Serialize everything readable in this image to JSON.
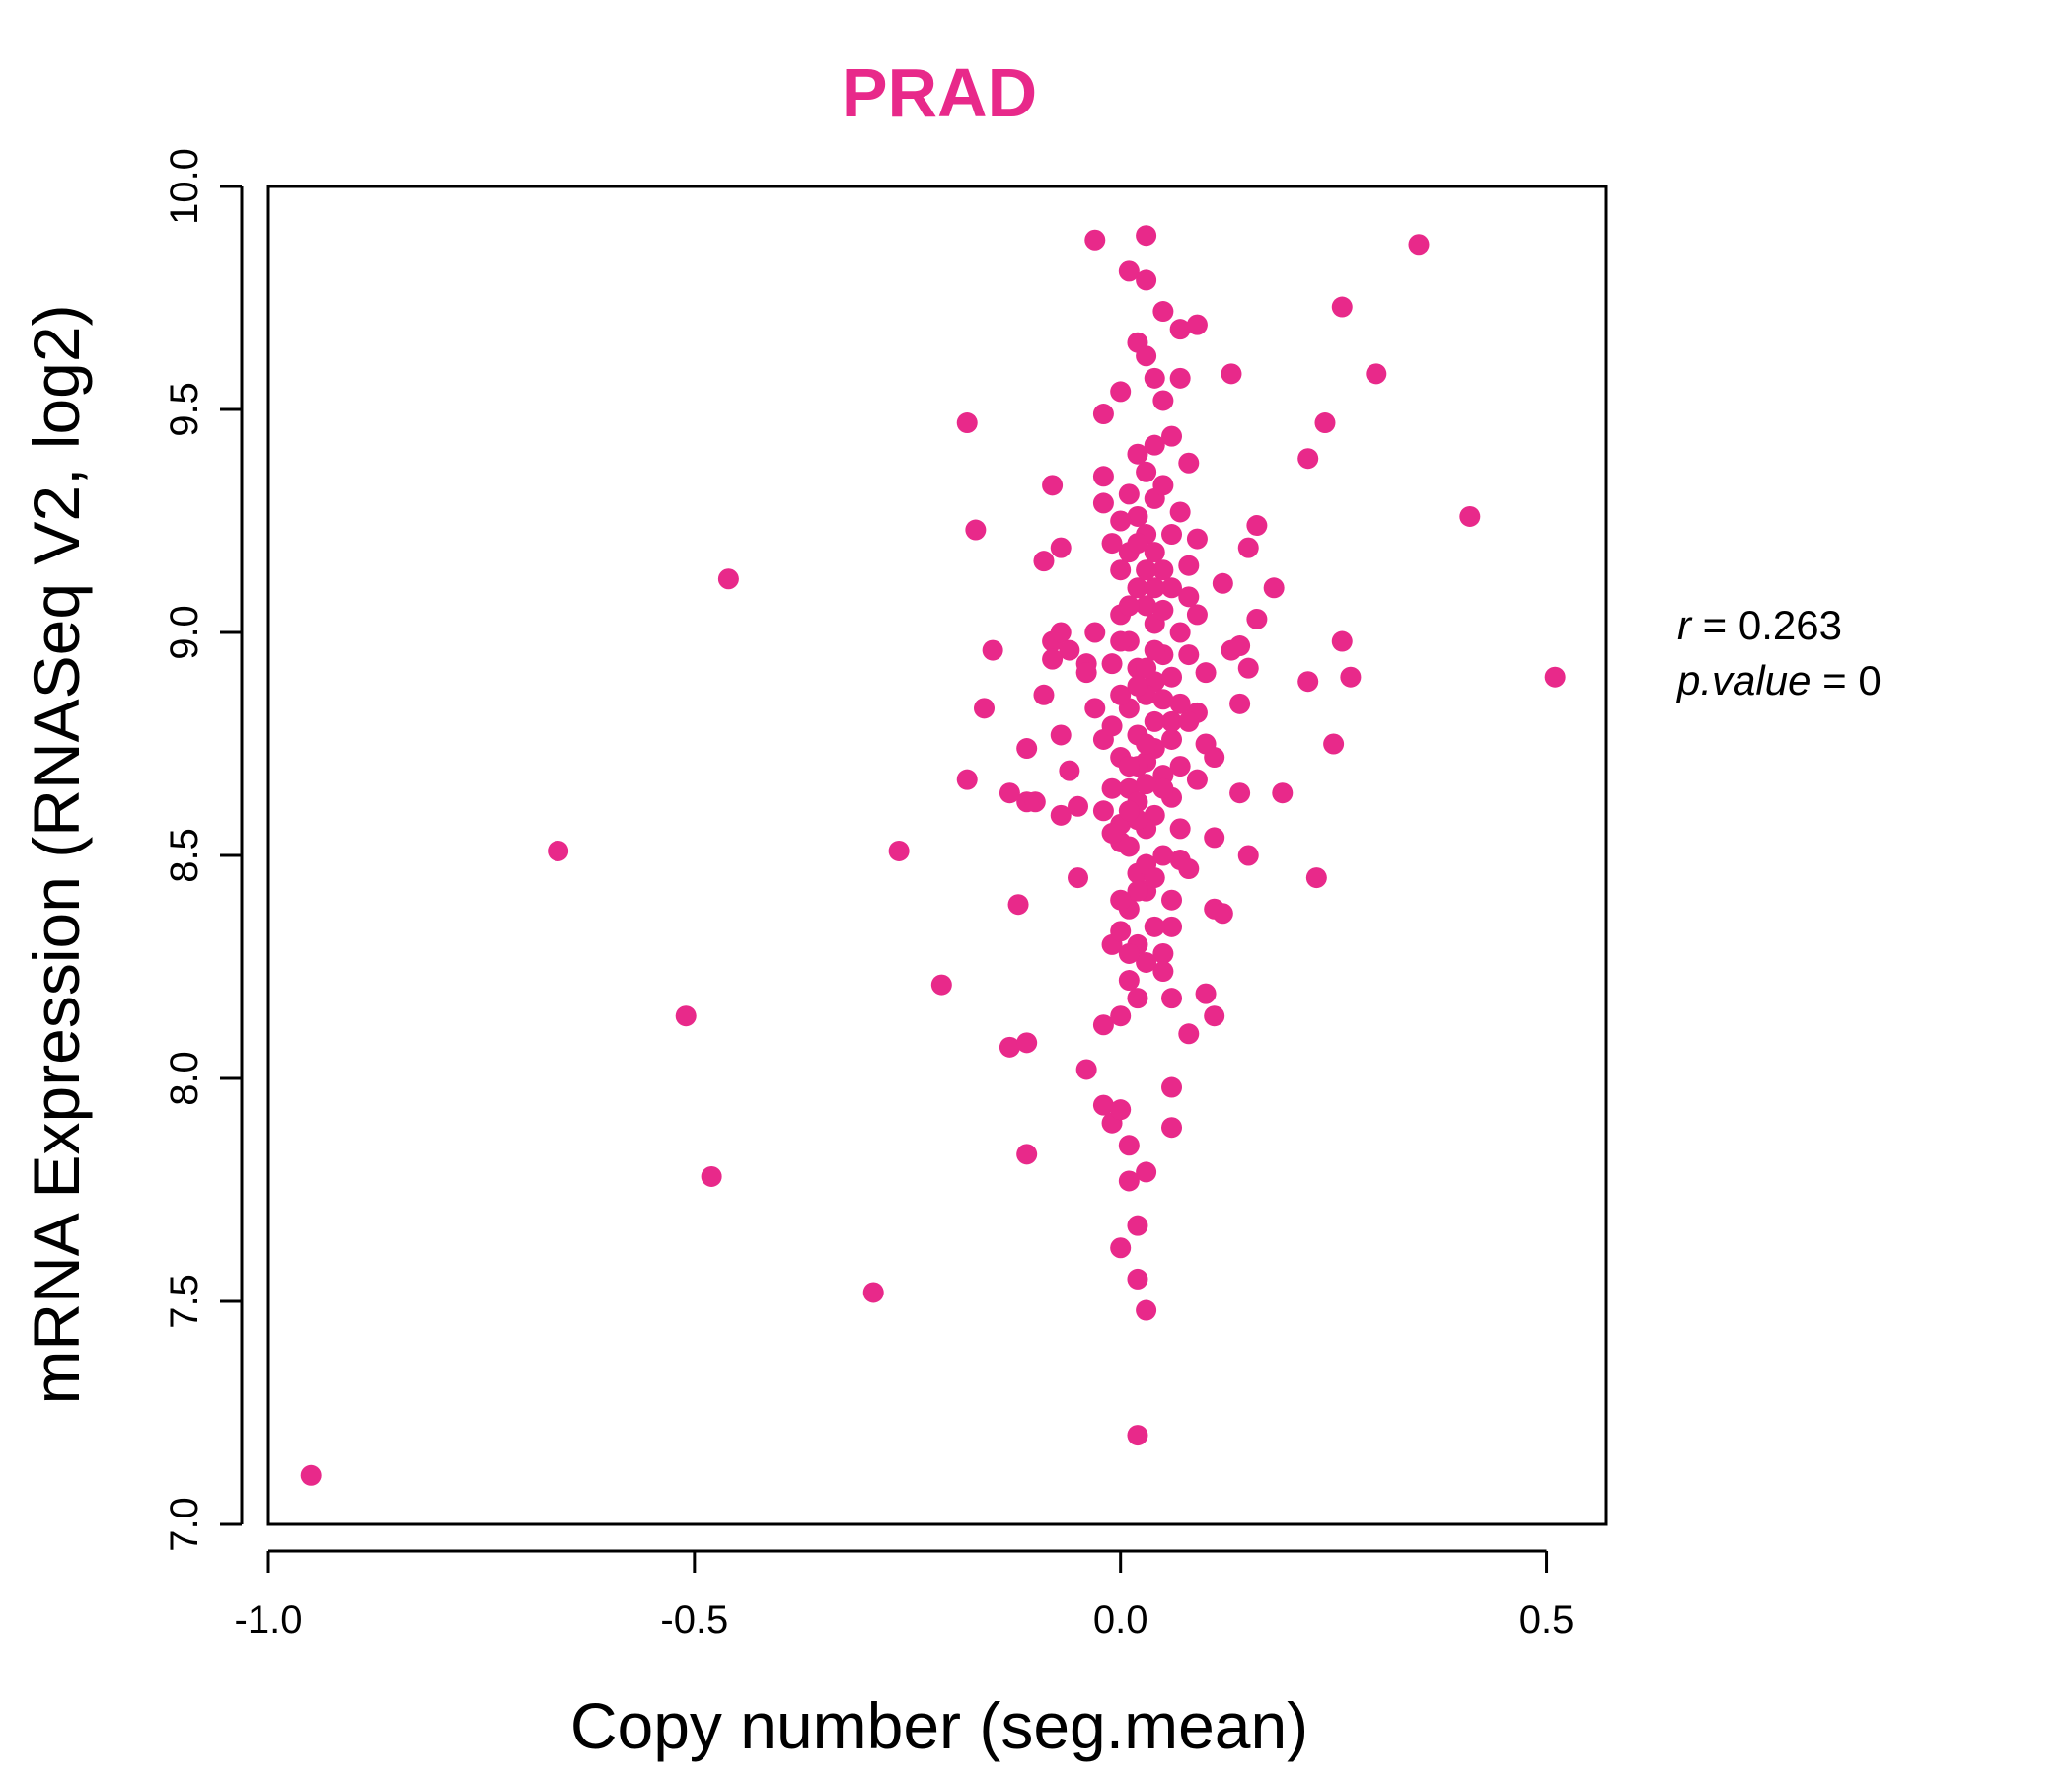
{
  "chart_data": {
    "type": "scatter",
    "title": "PRAD",
    "xlabel": "Copy number (seg.mean)",
    "ylabel": "mRNA Expression (RNASeq V2, log2)",
    "xlim": [
      -1.0,
      0.57
    ],
    "ylim": [
      7.0,
      10.0
    ],
    "xticks": [
      -1.0,
      -0.5,
      0.0,
      0.5
    ],
    "xtick_labels": [
      "-1.0",
      "-0.5",
      "0.0",
      "0.5"
    ],
    "yticks": [
      7.0,
      7.5,
      8.0,
      8.5,
      9.0,
      9.5,
      10.0
    ],
    "ytick_labels": [
      "7.0",
      "7.5",
      "8.0",
      "8.5",
      "9.0",
      "9.5",
      "10.0"
    ],
    "grid": false,
    "legend": "none",
    "color": "#e8298a",
    "stats": {
      "r_label": "r",
      "r_value": "0.263",
      "p_label": "p.value",
      "p_value": "0"
    },
    "points": [
      {
        "x": -0.95,
        "y": 7.11
      },
      {
        "x": -0.66,
        "y": 8.51
      },
      {
        "x": -0.46,
        "y": 9.12
      },
      {
        "x": -0.51,
        "y": 8.14
      },
      {
        "x": -0.48,
        "y": 7.78
      },
      {
        "x": -0.29,
        "y": 7.52
      },
      {
        "x": -0.26,
        "y": 8.51
      },
      {
        "x": -0.21,
        "y": 8.21
      },
      {
        "x": -0.18,
        "y": 9.47
      },
      {
        "x": -0.17,
        "y": 9.23
      },
      {
        "x": -0.15,
        "y": 8.96
      },
      {
        "x": -0.16,
        "y": 8.83
      },
      {
        "x": -0.18,
        "y": 8.67
      },
      {
        "x": -0.13,
        "y": 8.64
      },
      {
        "x": -0.12,
        "y": 8.39
      },
      {
        "x": -0.11,
        "y": 8.62
      },
      {
        "x": -0.13,
        "y": 8.07
      },
      {
        "x": -0.11,
        "y": 8.08
      },
      {
        "x": -0.11,
        "y": 7.83
      },
      {
        "x": -0.11,
        "y": 8.74
      },
      {
        "x": -0.1,
        "y": 8.62
      },
      {
        "x": -0.09,
        "y": 9.16
      },
      {
        "x": -0.09,
        "y": 8.86
      },
      {
        "x": -0.08,
        "y": 9.33
      },
      {
        "x": -0.07,
        "y": 9.19
      },
      {
        "x": -0.08,
        "y": 8.98
      },
      {
        "x": -0.07,
        "y": 9.0
      },
      {
        "x": -0.06,
        "y": 8.96
      },
      {
        "x": -0.08,
        "y": 8.94
      },
      {
        "x": -0.07,
        "y": 8.77
      },
      {
        "x": -0.07,
        "y": 8.59
      },
      {
        "x": -0.06,
        "y": 8.69
      },
      {
        "x": -0.05,
        "y": 8.45
      },
      {
        "x": -0.05,
        "y": 8.61
      },
      {
        "x": -0.04,
        "y": 8.93
      },
      {
        "x": -0.04,
        "y": 8.91
      },
      {
        "x": -0.03,
        "y": 8.83
      },
      {
        "x": -0.04,
        "y": 8.02
      },
      {
        "x": -0.03,
        "y": 9.88
      },
      {
        "x": -0.02,
        "y": 9.49
      },
      {
        "x": -0.02,
        "y": 9.35
      },
      {
        "x": -0.02,
        "y": 9.29
      },
      {
        "x": -0.03,
        "y": 9.0
      },
      {
        "x": -0.02,
        "y": 8.76
      },
      {
        "x": -0.02,
        "y": 8.12
      },
      {
        "x": -0.02,
        "y": 7.94
      },
      {
        "x": -0.01,
        "y": 7.9
      },
      {
        "x": -0.01,
        "y": 8.3
      },
      {
        "x": 0.0,
        "y": 8.14
      },
      {
        "x": 0.0,
        "y": 7.93
      },
      {
        "x": 0.01,
        "y": 7.85
      },
      {
        "x": 0.01,
        "y": 7.77
      },
      {
        "x": 0.0,
        "y": 7.62
      },
      {
        "x": 0.02,
        "y": 7.67
      },
      {
        "x": 0.02,
        "y": 7.55
      },
      {
        "x": 0.03,
        "y": 7.48
      },
      {
        "x": 0.03,
        "y": 7.79
      },
      {
        "x": 0.02,
        "y": 7.2
      },
      {
        "x": 0.01,
        "y": 9.81
      },
      {
        "x": 0.03,
        "y": 9.89
      },
      {
        "x": 0.03,
        "y": 9.79
      },
      {
        "x": 0.05,
        "y": 9.72
      },
      {
        "x": 0.07,
        "y": 9.68
      },
      {
        "x": 0.09,
        "y": 9.69
      },
      {
        "x": 0.02,
        "y": 9.65
      },
      {
        "x": 0.03,
        "y": 9.62
      },
      {
        "x": 0.04,
        "y": 9.57
      },
      {
        "x": 0.07,
        "y": 9.57
      },
      {
        "x": 0.0,
        "y": 9.54
      },
      {
        "x": 0.05,
        "y": 9.52
      },
      {
        "x": 0.06,
        "y": 9.44
      },
      {
        "x": 0.08,
        "y": 9.38
      },
      {
        "x": 0.07,
        "y": 9.27
      },
      {
        "x": 0.09,
        "y": 9.21
      },
      {
        "x": 0.08,
        "y": 9.08
      },
      {
        "x": 0.09,
        "y": 9.04
      },
      {
        "x": 0.1,
        "y": 8.91
      },
      {
        "x": 0.09,
        "y": 8.82
      },
      {
        "x": 0.1,
        "y": 8.75
      },
      {
        "x": 0.11,
        "y": 8.72
      },
      {
        "x": 0.09,
        "y": 8.67
      },
      {
        "x": 0.07,
        "y": 8.49
      },
      {
        "x": 0.08,
        "y": 8.47
      },
      {
        "x": 0.06,
        "y": 8.34
      },
      {
        "x": 0.05,
        "y": 8.28
      },
      {
        "x": 0.06,
        "y": 8.18
      },
      {
        "x": 0.08,
        "y": 8.1
      },
      {
        "x": 0.06,
        "y": 7.98
      },
      {
        "x": 0.06,
        "y": 7.89
      },
      {
        "x": 0.1,
        "y": 8.19
      },
      {
        "x": 0.11,
        "y": 8.14
      },
      {
        "x": 0.11,
        "y": 8.38
      },
      {
        "x": 0.12,
        "y": 8.37
      },
      {
        "x": 0.11,
        "y": 8.54
      },
      {
        "x": 0.12,
        "y": 9.11
      },
      {
        "x": 0.13,
        "y": 8.96
      },
      {
        "x": 0.13,
        "y": 9.58
      },
      {
        "x": 0.14,
        "y": 8.97
      },
      {
        "x": 0.14,
        "y": 8.64
      },
      {
        "x": 0.14,
        "y": 8.84
      },
      {
        "x": 0.15,
        "y": 8.5
      },
      {
        "x": 0.15,
        "y": 8.92
      },
      {
        "x": 0.15,
        "y": 9.19
      },
      {
        "x": 0.16,
        "y": 9.24
      },
      {
        "x": 0.16,
        "y": 9.03
      },
      {
        "x": 0.18,
        "y": 9.1
      },
      {
        "x": 0.19,
        "y": 8.64
      },
      {
        "x": 0.22,
        "y": 9.39
      },
      {
        "x": 0.22,
        "y": 8.89
      },
      {
        "x": 0.23,
        "y": 8.45
      },
      {
        "x": 0.24,
        "y": 9.47
      },
      {
        "x": 0.25,
        "y": 8.75
      },
      {
        "x": 0.26,
        "y": 9.73
      },
      {
        "x": 0.26,
        "y": 8.98
      },
      {
        "x": 0.27,
        "y": 8.9
      },
      {
        "x": 0.3,
        "y": 9.58
      },
      {
        "x": 0.35,
        "y": 9.87
      },
      {
        "x": 0.41,
        "y": 9.26
      },
      {
        "x": 0.51,
        "y": 8.9
      },
      {
        "x": 0.01,
        "y": 9.31
      },
      {
        "x": 0.02,
        "y": 9.26
      },
      {
        "x": 0.03,
        "y": 9.22
      },
      {
        "x": 0.04,
        "y": 9.18
      },
      {
        "x": 0.05,
        "y": 9.14
      },
      {
        "x": 0.02,
        "y": 9.1
      },
      {
        "x": 0.03,
        "y": 9.06
      },
      {
        "x": 0.04,
        "y": 9.02
      },
      {
        "x": 0.01,
        "y": 8.98
      },
      {
        "x": 0.05,
        "y": 8.95
      },
      {
        "x": 0.02,
        "y": 8.92
      },
      {
        "x": 0.04,
        "y": 8.89
      },
      {
        "x": 0.03,
        "y": 8.86
      },
      {
        "x": 0.01,
        "y": 8.83
      },
      {
        "x": 0.06,
        "y": 8.8
      },
      {
        "x": 0.02,
        "y": 8.77
      },
      {
        "x": 0.04,
        "y": 8.74
      },
      {
        "x": 0.03,
        "y": 8.71
      },
      {
        "x": 0.05,
        "y": 8.68
      },
      {
        "x": 0.01,
        "y": 8.65
      },
      {
        "x": 0.02,
        "y": 8.62
      },
      {
        "x": 0.04,
        "y": 8.59
      },
      {
        "x": 0.03,
        "y": 8.56
      },
      {
        "x": 0.0,
        "y": 8.53
      },
      {
        "x": 0.05,
        "y": 8.5
      },
      {
        "x": 0.02,
        "y": 8.46
      },
      {
        "x": 0.03,
        "y": 8.42
      },
      {
        "x": 0.01,
        "y": 8.38
      },
      {
        "x": 0.04,
        "y": 8.34
      },
      {
        "x": 0.02,
        "y": 8.3
      },
      {
        "x": 0.03,
        "y": 8.26
      },
      {
        "x": 0.01,
        "y": 8.22
      },
      {
        "x": 0.0,
        "y": 9.14
      },
      {
        "x": 0.0,
        "y": 9.04
      },
      {
        "x": -0.01,
        "y": 8.93
      },
      {
        "x": 0.0,
        "y": 8.86
      },
      {
        "x": -0.01,
        "y": 8.79
      },
      {
        "x": 0.0,
        "y": 8.72
      },
      {
        "x": -0.01,
        "y": 8.65
      },
      {
        "x": -0.02,
        "y": 8.6
      },
      {
        "x": 0.0,
        "y": 8.57
      },
      {
        "x": -0.01,
        "y": 8.55
      },
      {
        "x": 0.06,
        "y": 9.1
      },
      {
        "x": 0.07,
        "y": 9.0
      },
      {
        "x": 0.06,
        "y": 8.9
      },
      {
        "x": 0.07,
        "y": 8.84
      },
      {
        "x": 0.06,
        "y": 8.76
      },
      {
        "x": 0.07,
        "y": 8.7
      },
      {
        "x": 0.06,
        "y": 8.63
      },
      {
        "x": 0.07,
        "y": 8.56
      },
      {
        "x": 0.05,
        "y": 9.05
      },
      {
        "x": 0.05,
        "y": 8.85
      },
      {
        "x": 0.05,
        "y": 8.65
      },
      {
        "x": 0.04,
        "y": 9.3
      },
      {
        "x": 0.04,
        "y": 9.42
      },
      {
        "x": 0.03,
        "y": 9.36
      },
      {
        "x": 0.05,
        "y": 9.33
      },
      {
        "x": 0.02,
        "y": 9.4
      },
      {
        "x": 0.06,
        "y": 9.22
      },
      {
        "x": 0.01,
        "y": 9.18
      },
      {
        "x": 0.0,
        "y": 9.25
      },
      {
        "x": 0.08,
        "y": 8.95
      },
      {
        "x": 0.08,
        "y": 8.8
      },
      {
        "x": 0.08,
        "y": 9.15
      },
      {
        "x": 0.03,
        "y": 8.48
      },
      {
        "x": 0.04,
        "y": 8.45
      },
      {
        "x": 0.02,
        "y": 8.42
      },
      {
        "x": 0.06,
        "y": 8.4
      },
      {
        "x": 0.01,
        "y": 8.28
      },
      {
        "x": 0.0,
        "y": 8.33
      },
      {
        "x": 0.05,
        "y": 8.24
      },
      {
        "x": 0.02,
        "y": 8.18
      },
      {
        "x": 0.04,
        "y": 8.96
      },
      {
        "x": 0.03,
        "y": 8.92
      },
      {
        "x": 0.02,
        "y": 8.88
      },
      {
        "x": 0.04,
        "y": 8.8
      },
      {
        "x": 0.03,
        "y": 8.75
      },
      {
        "x": 0.02,
        "y": 8.7
      },
      {
        "x": 0.03,
        "y": 8.66
      },
      {
        "x": 0.02,
        "y": 8.58
      },
      {
        "x": 0.01,
        "y": 8.52
      },
      {
        "x": 0.04,
        "y": 9.1
      },
      {
        "x": 0.03,
        "y": 9.14
      },
      {
        "x": 0.02,
        "y": 9.2
      },
      {
        "x": 0.01,
        "y": 9.06
      },
      {
        "x": 0.0,
        "y": 8.98
      },
      {
        "x": -0.01,
        "y": 9.2
      },
      {
        "x": 0.01,
        "y": 8.7
      },
      {
        "x": 0.0,
        "y": 8.4
      },
      {
        "x": 0.01,
        "y": 8.6
      }
    ]
  }
}
